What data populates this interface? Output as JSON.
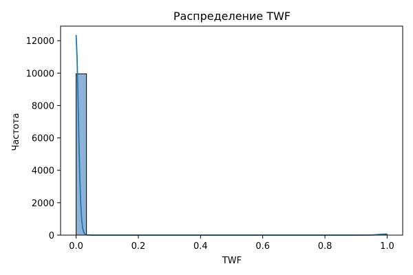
{
  "chart_data": {
    "type": "bar",
    "title": "Распределение TWF",
    "xlabel": "TWF",
    "ylabel": "Частота",
    "xlim": [
      -0.05,
      1.05
    ],
    "ylim": [
      0,
      12900
    ],
    "xticks": [
      {
        "value": 0.0,
        "label": "0.0"
      },
      {
        "value": 0.2,
        "label": "0.2"
      },
      {
        "value": 0.4,
        "label": "0.4"
      },
      {
        "value": 0.6,
        "label": "0.6"
      },
      {
        "value": 0.8,
        "label": "0.8"
      },
      {
        "value": 1.0,
        "label": "1.0"
      }
    ],
    "yticks": [
      {
        "value": 0,
        "label": "0"
      },
      {
        "value": 2000,
        "label": "2000"
      },
      {
        "value": 4000,
        "label": "4000"
      },
      {
        "value": 6000,
        "label": "6000"
      },
      {
        "value": 8000,
        "label": "8000"
      },
      {
        "value": 10000,
        "label": "10000"
      },
      {
        "value": 12000,
        "label": "12000"
      }
    ],
    "bins": [
      {
        "x0": 0.0,
        "x1": 0.0333,
        "value": 9954
      },
      {
        "x0": 0.9667,
        "x1": 1.0,
        "value": 46
      }
    ],
    "kde": {
      "x": [
        0.0,
        0.003,
        0.006,
        0.009,
        0.012,
        0.015,
        0.018,
        0.021,
        0.025,
        0.03,
        0.035,
        0.05,
        0.1,
        0.3,
        0.5,
        0.7,
        0.9,
        0.95,
        0.97,
        0.985,
        1.0
      ],
      "y": [
        12350,
        11000,
        8500,
        5800,
        3500,
        1900,
        950,
        420,
        150,
        40,
        10,
        0,
        0,
        0,
        0,
        0,
        0,
        5,
        25,
        55,
        70
      ]
    },
    "colors": {
      "bar_fill": "#8db4d6",
      "bar_edge": "#000000",
      "kde_line": "#1f77b4"
    },
    "grid": false,
    "legend": "none"
  }
}
